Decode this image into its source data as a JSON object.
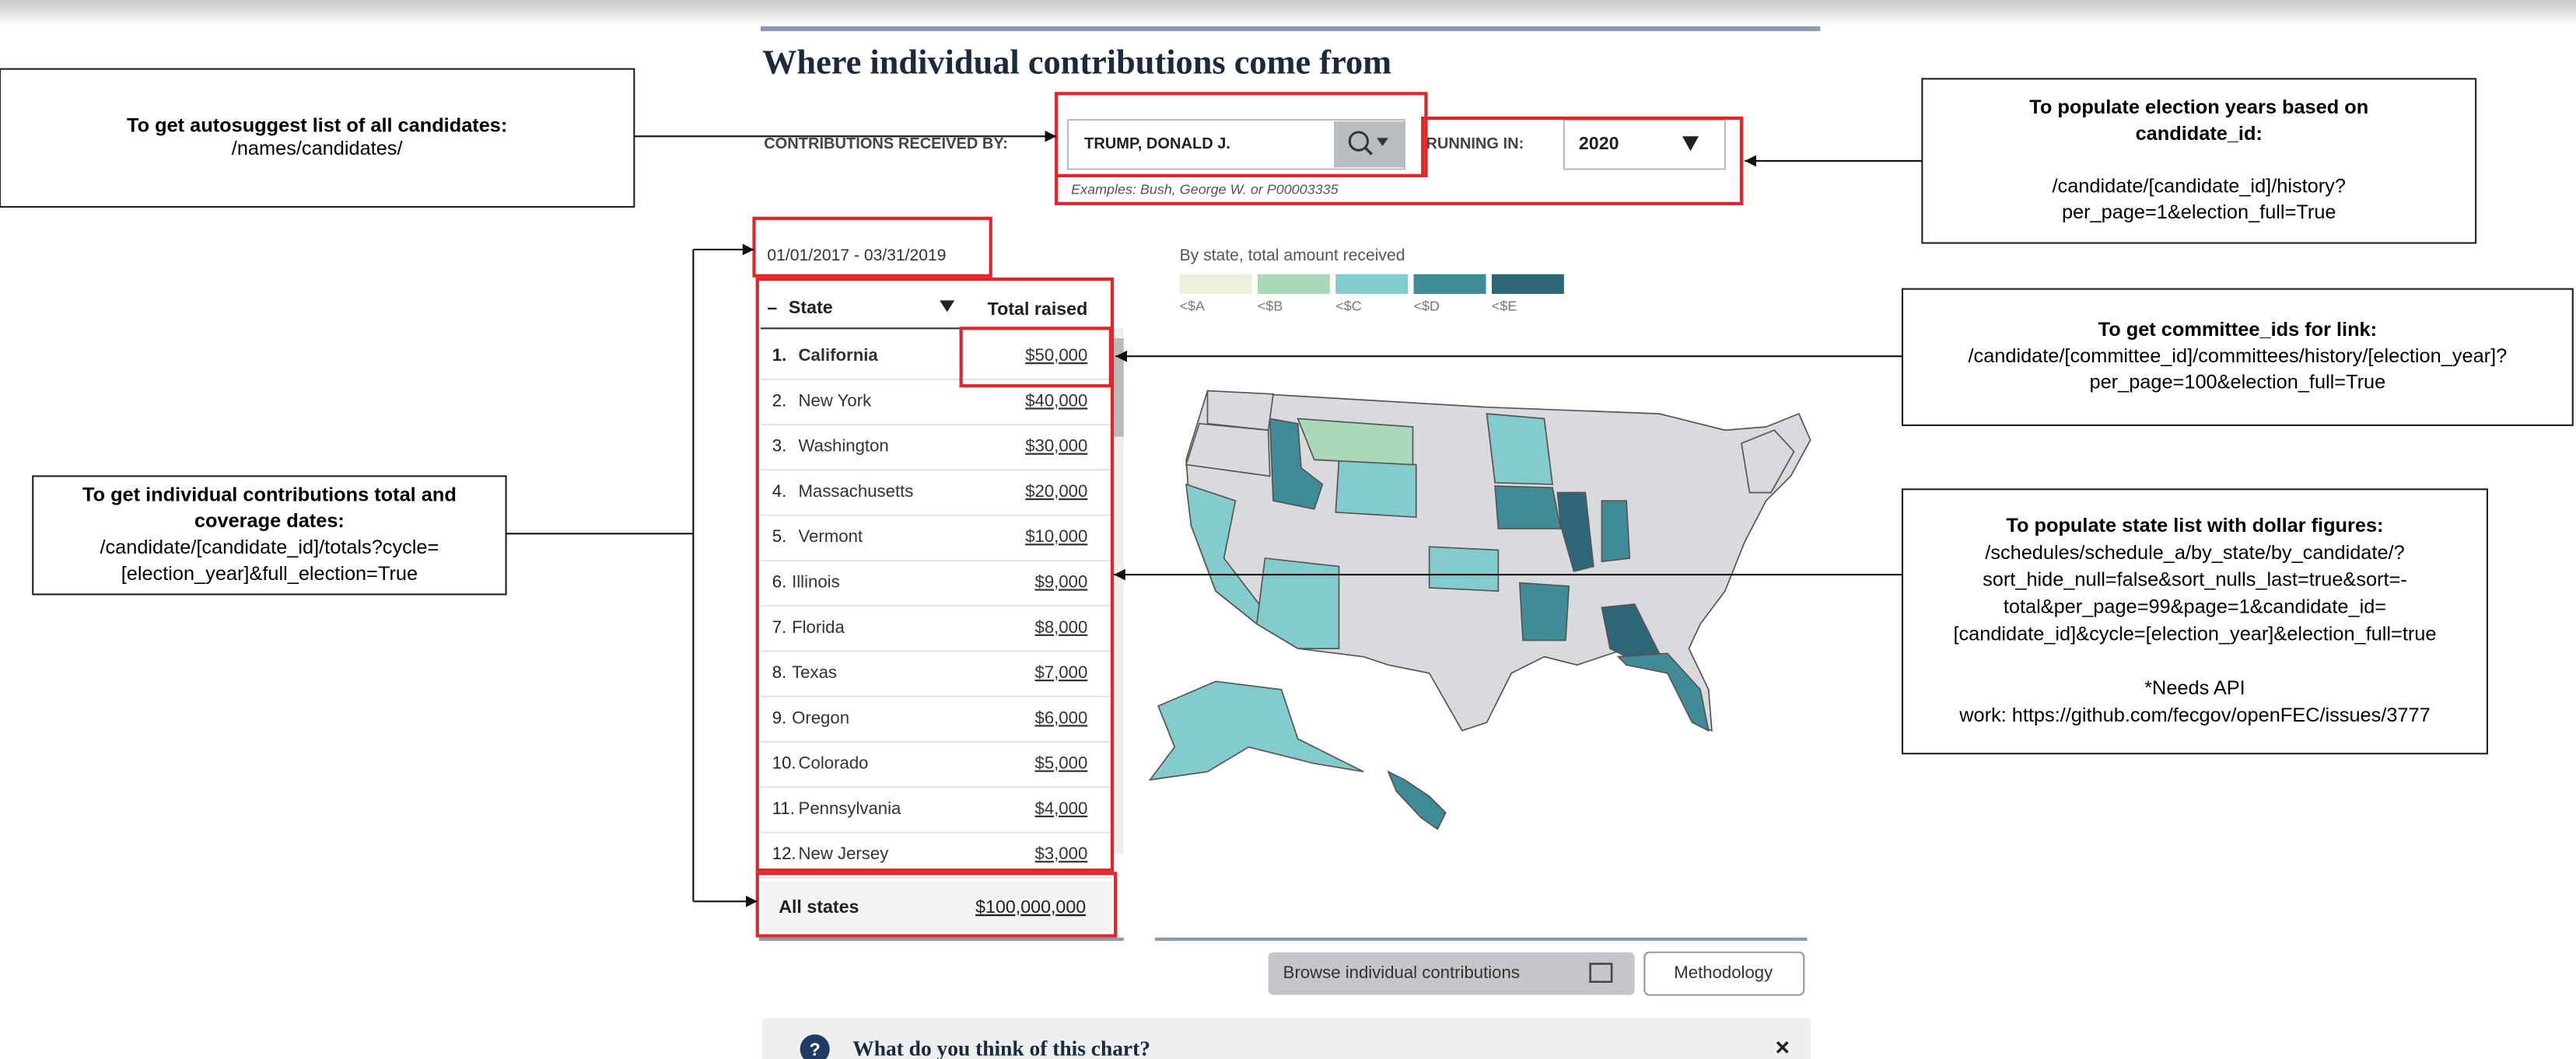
{
  "header": {
    "title": "Where individual contributions come from"
  },
  "form": {
    "candidate_label": "CONTRIBUTIONS RECEIVED BY:",
    "candidate_value": "TRUMP, DONALD J.",
    "examples": "Examples: Bush, George W. or P00003335",
    "year_label": "RUNNING IN:",
    "year_value": "2020"
  },
  "date_range": "01/01/2017 - 03/31/2019",
  "table": {
    "headers": [
      "State",
      "Total raised"
    ],
    "rows": [
      [
        "1.",
        "California",
        "$50,000"
      ],
      [
        "2.",
        "New York",
        "$40,000"
      ],
      [
        "3.",
        "Washington",
        "$30,000"
      ],
      [
        "4.",
        "Massachusetts",
        "$20,000"
      ],
      [
        "5.",
        "Vermont",
        "$10,000"
      ],
      [
        "6.",
        "Illinois",
        "$9,000"
      ],
      [
        "7.",
        "Florida",
        "$8,000"
      ],
      [
        "8.",
        "Texas",
        "$7,000"
      ],
      [
        "9.",
        "Oregon",
        "$6,000"
      ],
      [
        "10.",
        "Colorado",
        "$5,000"
      ],
      [
        "11.",
        "Pennsylvania",
        "$4,000"
      ],
      [
        "12.",
        "New Jersey",
        "$3,000"
      ]
    ],
    "total": [
      "All states",
      "$100,000,000"
    ]
  },
  "legend": {
    "title": "By state, total amount received",
    "items": [
      {
        "label": "<$A",
        "color": "#eef2dc"
      },
      {
        "label": "<$B",
        "color": "#a9d9b9"
      },
      {
        "label": "<$C",
        "color": "#84cbcd"
      },
      {
        "label": "<$D",
        "color": "#3f8b98"
      },
      {
        "label": "<$E",
        "color": "#2e6679"
      }
    ]
  },
  "buttons": {
    "browse": "Browse individual contributions",
    "methodology": "Methodology"
  },
  "feedback": {
    "question": "What do you think of this chart?"
  },
  "annotations": [
    {
      "heading": [
        "To get autosuggest list of all candidates:"
      ],
      "body": [
        "/names/candidates/"
      ]
    },
    {
      "heading": [
        "To populate election years based on",
        "candidate_id:"
      ],
      "body": [
        "/candidate/[candidate_id]/history?",
        "per_page=1&election_full=True"
      ]
    },
    {
      "heading": [
        "To get committee_ids for link:"
      ],
      "body": [
        "/candidate/[committee_id]/committees/history/[election_year]?",
        "per_page=100&election_full=True"
      ]
    },
    {
      "heading": [
        "To populate state list with dollar figures:"
      ],
      "body": [
        "/schedules/schedule_a/by_state/by_candidate/?",
        "sort_hide_null=false&sort_nulls_last=true&sort=-",
        "total&per_page=99&page=1&candidate_id=",
        "[candidate_id]&cycle=[election_year]&election_full=true",
        "",
        "*Needs API",
        "work: https://github.com/fecgov/openFEC/issues/3777"
      ]
    },
    {
      "heading": [
        "To get individual contributions total and",
        "coverage dates:"
      ],
      "body": [
        "/candidate/[candidate_id]/totals?cycle=",
        "[election_year]&full_election=True"
      ]
    }
  ]
}
